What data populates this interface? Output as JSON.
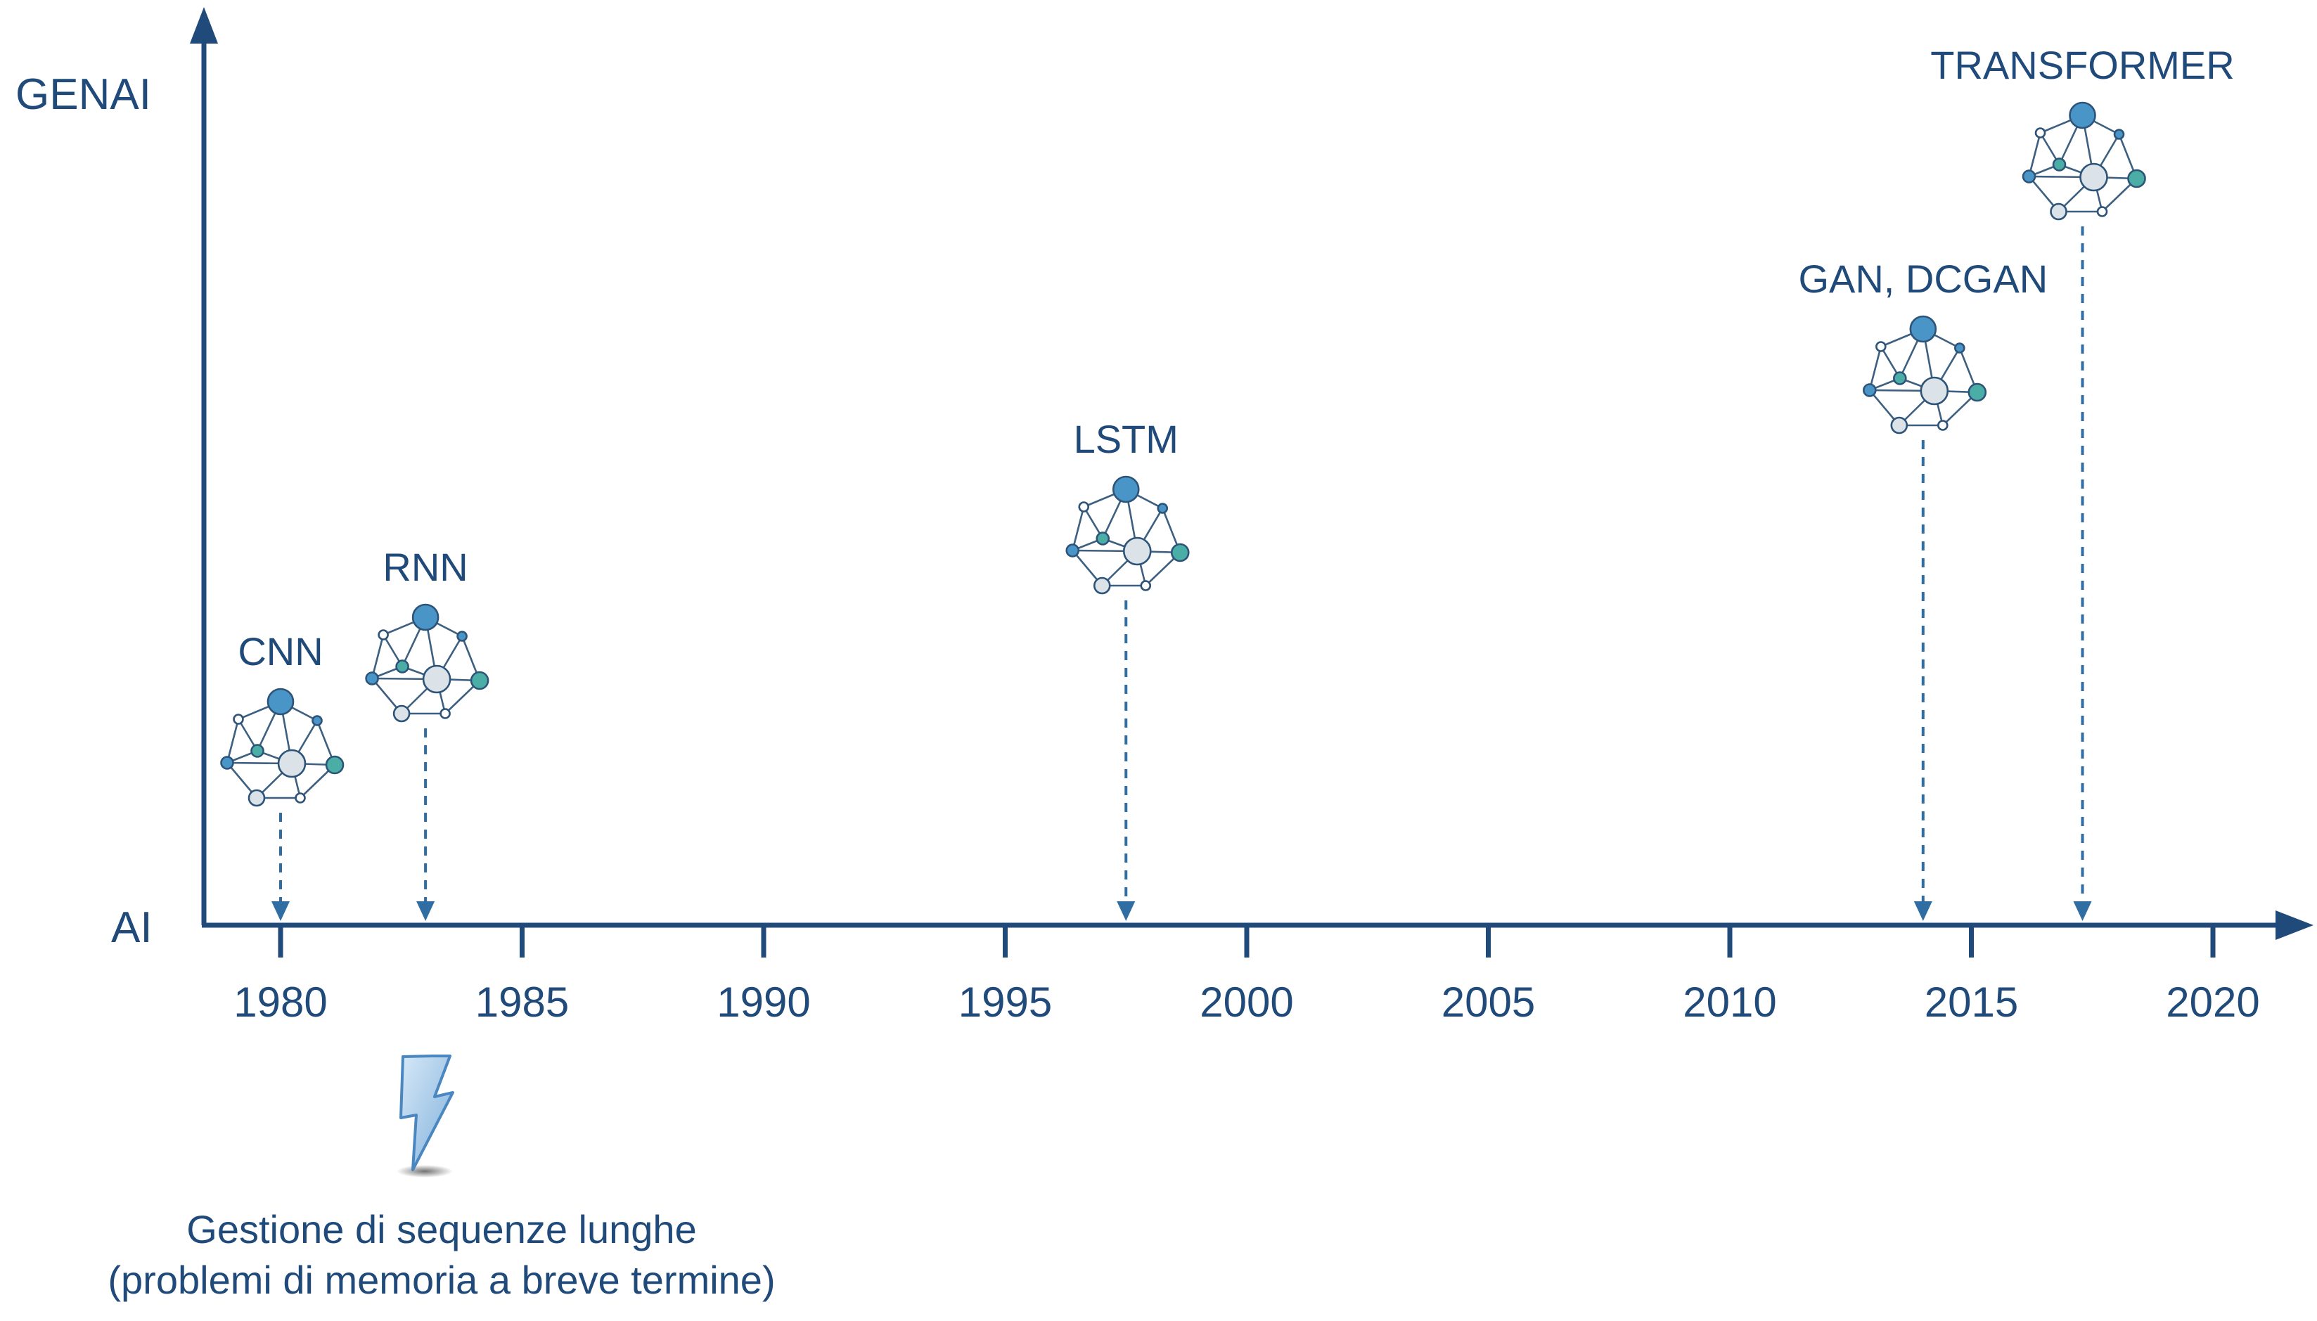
{
  "axis": {
    "y_top_label": "GENAI",
    "y_bottom_label": "AI",
    "x_ticks": [
      "1980",
      "1985",
      "1990",
      "1995",
      "2000",
      "2005",
      "2010",
      "2015",
      "2020"
    ]
  },
  "models": [
    {
      "label": "CNN",
      "year": 1980
    },
    {
      "label": "RNN",
      "year": 1983
    },
    {
      "label": "LSTM",
      "year": 1997.5
    },
    {
      "label": "GAN, DCGAN",
      "year": 2014
    },
    {
      "label": "TRANSFORMER",
      "year": 2017.3
    }
  ],
  "note": {
    "icon": "lightning-icon",
    "line1": "Gestione di sequenze lunghe",
    "line2": "(problemi di memoria a breve termine)"
  },
  "colors": {
    "axis": "#1f4a7a",
    "dashed": "#2f6da3",
    "node_blue": "#4a95c8",
    "node_teal": "#4aaea6",
    "node_gray": "#dbe2e8",
    "node_white": "#ffffff",
    "lightning": "#a9cbe8"
  }
}
